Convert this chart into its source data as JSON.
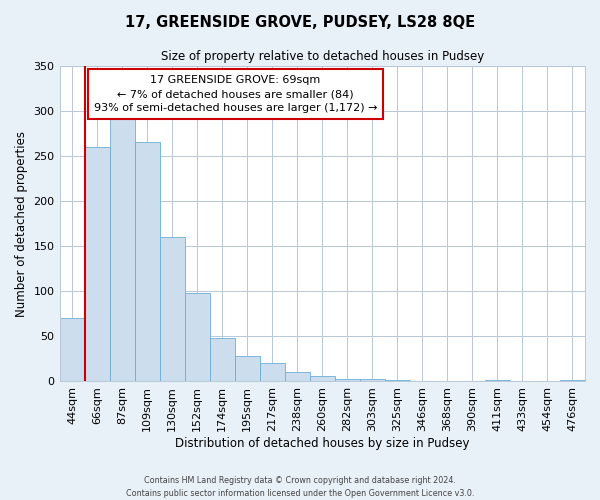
{
  "title1": "17, GREENSIDE GROVE, PUDSEY, LS28 8QE",
  "title2": "Size of property relative to detached houses in Pudsey",
  "xlabel": "Distribution of detached houses by size in Pudsey",
  "ylabel": "Number of detached properties",
  "bar_labels": [
    "44sqm",
    "66sqm",
    "87sqm",
    "109sqm",
    "130sqm",
    "152sqm",
    "174sqm",
    "195sqm",
    "217sqm",
    "238sqm",
    "260sqm",
    "282sqm",
    "303sqm",
    "325sqm",
    "346sqm",
    "368sqm",
    "390sqm",
    "411sqm",
    "433sqm",
    "454sqm",
    "476sqm"
  ],
  "bar_values": [
    70,
    260,
    293,
    265,
    160,
    98,
    48,
    28,
    20,
    10,
    6,
    3,
    3,
    2,
    1,
    0,
    0,
    2,
    0,
    0,
    2
  ],
  "bar_color": "#ccdded",
  "bar_edge_color": "#6baed6",
  "vline_x": 0.5,
  "vline_color": "#cc0000",
  "ylim": [
    0,
    350
  ],
  "yticks": [
    0,
    50,
    100,
    150,
    200,
    250,
    300,
    350
  ],
  "annotation_title": "17 GREENSIDE GROVE: 69sqm",
  "annotation_line1": "← 7% of detached houses are smaller (84)",
  "annotation_line2": "93% of semi-detached houses are larger (1,172) →",
  "annotation_box_color": "#ffffff",
  "annotation_box_edge_color": "#cc0000",
  "footer1": "Contains HM Land Registry data © Crown copyright and database right 2024.",
  "footer2": "Contains public sector information licensed under the Open Government Licence v3.0.",
  "background_color": "#e8f0f8",
  "plot_background_color": "#ffffff",
  "grid_color": "#b8c8d8"
}
